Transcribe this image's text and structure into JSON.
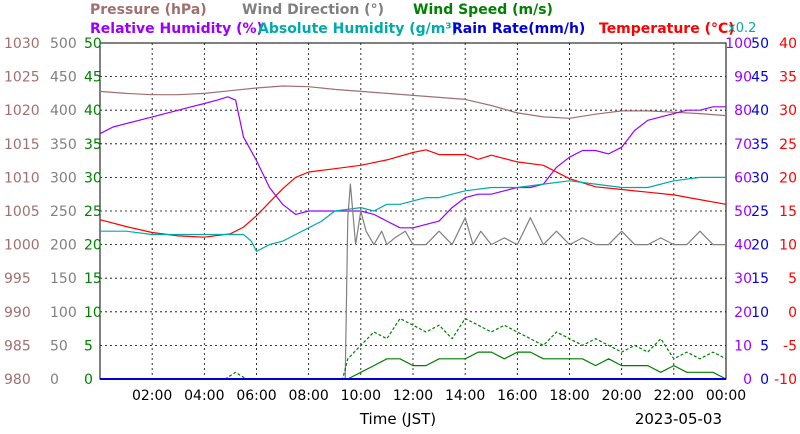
{
  "chart_data": {
    "type": "line",
    "legend": {
      "row1": [
        {
          "text": "Pressure (hPa)",
          "color": "#a07070"
        },
        {
          "text": "Wind Direction (°)",
          "color": "#808080"
        },
        {
          "text": "Wind Speed (m/s)",
          "color": "#008000"
        }
      ],
      "row2": [
        {
          "text": "Relative Humidity (%)",
          "color": "#9900ff"
        },
        {
          "text": "Absolute Humidity (g/m³)",
          "color": "#00aaaa"
        },
        {
          "text": "Rain Rate(mm/h)",
          "color": "#0000dd"
        },
        {
          "text": "Temperature (°C)",
          "color": "#ff0000"
        }
      ]
    },
    "multiplier_label": "x0.2",
    "xlabel": "Time (JST)",
    "date_label": "2023-05-03",
    "xrange": [
      0,
      24
    ],
    "x_tick_labels": [
      "02:00",
      "04:00",
      "06:00",
      "08:00",
      "10:00",
      "12:00",
      "14:00",
      "16:00",
      "18:00",
      "20:00",
      "22:00",
      "00:00"
    ],
    "axes": {
      "pressure": {
        "color": "#a07070",
        "range": [
          980,
          1030
        ],
        "ticks": [
          "1030",
          "1025",
          "1020",
          "1015",
          "1010",
          "1005",
          "1000",
          "995",
          "990",
          "985",
          "980"
        ]
      },
      "wind_direction": {
        "color": "#808080",
        "range": [
          0,
          500
        ],
        "ticks": [
          "500",
          "450",
          "400",
          "350",
          "300",
          "250",
          "200",
          "150",
          "100",
          "50",
          "0"
        ]
      },
      "wind_speed": {
        "color": "#008000",
        "range": [
          0,
          50
        ],
        "ticks": [
          "50",
          "45",
          "40",
          "35",
          "30",
          "25",
          "20",
          "15",
          "10",
          "5",
          "0"
        ]
      },
      "humidity": {
        "color": "#9900ff",
        "range": [
          0,
          100
        ],
        "ticks": [
          "100",
          "90",
          "80",
          "70",
          "60",
          "50",
          "40",
          "30",
          "20",
          "10",
          "0"
        ]
      },
      "rain_rate": {
        "color": "#0000dd",
        "range": [
          0,
          50
        ],
        "ticks": [
          "50",
          "45",
          "40",
          "35",
          "30",
          "25",
          "20",
          "15",
          "10",
          "5",
          "0"
        ]
      },
      "temperature": {
        "color": "#ff0000",
        "range": [
          -10,
          40
        ],
        "ticks": [
          "40",
          "35",
          "30",
          "25",
          "20",
          "15",
          "10",
          "5",
          "0",
          "-5",
          "-10"
        ]
      }
    },
    "series": [
      {
        "name": "Pressure (hPa)",
        "axis": "pressure",
        "color": "#a07070",
        "x": [
          0,
          1,
          2,
          3,
          4,
          5,
          6,
          7,
          8,
          9,
          10,
          11,
          12,
          13,
          14,
          15,
          16,
          17,
          18,
          19,
          20,
          21,
          22,
          23,
          24
        ],
        "y": [
          1022.8,
          1022.5,
          1022.3,
          1022.3,
          1022.5,
          1022.9,
          1023.3,
          1023.6,
          1023.5,
          1023.1,
          1022.8,
          1022.5,
          1022.2,
          1021.9,
          1021.6,
          1020.7,
          1019.6,
          1019.0,
          1018.8,
          1019.4,
          1019.9,
          1019.9,
          1019.7,
          1019.5,
          1019.2
        ]
      },
      {
        "name": "Temperature (°C)",
        "axis": "temperature",
        "color": "#ff0000",
        "x": [
          0,
          1,
          2,
          3,
          4,
          5,
          5.5,
          6,
          6.5,
          7,
          7.5,
          8,
          9,
          10,
          11,
          12,
          12.5,
          13,
          14,
          14.5,
          15,
          16,
          17,
          18,
          19,
          20,
          21,
          22,
          23,
          24
        ],
        "y": [
          13.7,
          12.7,
          11.8,
          11.3,
          11.1,
          11.6,
          12.6,
          14.3,
          16.3,
          18.3,
          20.0,
          20.8,
          21.3,
          21.8,
          22.6,
          23.7,
          24.1,
          23.4,
          23.4,
          22.7,
          23.3,
          22.3,
          21.8,
          19.8,
          18.6,
          18.2,
          17.8,
          17.4,
          16.7,
          16.0
        ]
      },
      {
        "name": "Relative Humidity (%)",
        "axis": "humidity",
        "color": "#9900ff",
        "x": [
          0,
          0.5,
          1,
          1.5,
          2,
          2.5,
          3,
          3.5,
          4,
          4.5,
          4.9,
          5.2,
          5.5,
          6,
          6.5,
          7,
          7.5,
          8,
          8.5,
          9,
          9.5,
          10,
          10.5,
          11,
          11.5,
          12,
          12.5,
          13,
          13.5,
          14,
          14.5,
          15,
          15.5,
          16,
          16.5,
          17,
          17.5,
          18,
          18.5,
          19,
          19.5,
          20,
          20.5,
          21,
          21.5,
          22,
          22.5,
          23,
          23.5,
          24
        ],
        "y": [
          73,
          75,
          76,
          77,
          78,
          79,
          80,
          81,
          82,
          83,
          84,
          83,
          72,
          65,
          57,
          52,
          49,
          50,
          50,
          50,
          50,
          50,
          49,
          47,
          45,
          45,
          46,
          47,
          51,
          54,
          55,
          55,
          56,
          57,
          57,
          58,
          63,
          66,
          68,
          68,
          67,
          69,
          74,
          77,
          78,
          79,
          80,
          80,
          81,
          81
        ]
      },
      {
        "name": "Absolute Humidity (g/m³)",
        "axis": "humidity",
        "color": "#00aaaa",
        "x": [
          0,
          1,
          2,
          3,
          4,
          5,
          5.5,
          5.8,
          6,
          6.5,
          7,
          7.5,
          8,
          8.5,
          9,
          10,
          10.5,
          11,
          11.5,
          12,
          12.5,
          13,
          14,
          15,
          16,
          17,
          18,
          19,
          20,
          21,
          22,
          23,
          24
        ],
        "y": [
          44,
          44,
          43,
          43,
          43,
          43,
          43,
          41,
          38,
          40,
          41,
          43,
          45,
          47,
          50,
          51,
          50,
          52,
          52,
          53,
          54,
          54,
          56,
          57,
          57,
          58,
          59,
          58,
          57,
          57,
          59,
          60,
          60
        ]
      },
      {
        "name": "Wind Direction (°)",
        "axis": "wind_direction",
        "color": "#808080",
        "x": [
          0,
          9.4,
          9.5,
          9.6,
          9.8,
          10,
          10.2,
          10.5,
          10.8,
          11,
          11.3,
          11.7,
          12,
          12.5,
          13,
          13.5,
          14,
          14.3,
          14.6,
          15,
          15.5,
          16,
          16.5,
          17,
          17.5,
          18,
          18.5,
          19,
          19.5,
          20,
          20.5,
          21,
          21.5,
          22,
          22.5,
          23,
          23.5,
          24
        ],
        "y": [
          0,
          0,
          240,
          290,
          200,
          250,
          220,
          200,
          220,
          200,
          210,
          220,
          200,
          200,
          220,
          200,
          240,
          200,
          220,
          200,
          210,
          200,
          240,
          200,
          220,
          200,
          210,
          200,
          200,
          220,
          200,
          200,
          210,
          200,
          200,
          220,
          200,
          200
        ]
      },
      {
        "name": "Wind Speed (m/s) max",
        "axis": "wind_speed",
        "color": "#008000",
        "dashed": true,
        "x": [
          0,
          4.8,
          5.2,
          5.6,
          6,
          9.3,
          9.5,
          10,
          10.5,
          11,
          11.5,
          12,
          12.5,
          13,
          13.5,
          14,
          14.5,
          15,
          15.5,
          16,
          16.5,
          17,
          17.5,
          18,
          18.5,
          19,
          19.5,
          20,
          20.5,
          21,
          21.5,
          22,
          22.5,
          23,
          23.5,
          24
        ],
        "y": [
          0,
          0,
          1,
          0,
          0,
          0,
          3,
          5,
          7,
          6,
          9,
          8,
          7,
          8,
          6,
          9,
          8,
          7,
          8,
          7,
          6,
          5,
          7,
          6,
          5,
          6,
          5,
          4,
          5,
          4,
          6,
          3,
          4,
          3,
          4,
          3
        ]
      },
      {
        "name": "Wind Speed (m/s) avg",
        "axis": "wind_speed",
        "color": "#008000",
        "x": [
          0,
          9.5,
          10,
          10.5,
          11,
          11.5,
          12,
          12.5,
          13,
          13.5,
          14,
          14.5,
          15,
          15.5,
          16,
          16.5,
          17,
          17.5,
          18,
          18.5,
          19,
          19.5,
          20,
          20.5,
          21,
          21.5,
          22,
          22.5,
          23,
          23.5,
          24
        ],
        "y": [
          0,
          0,
          1,
          2,
          3,
          3,
          2,
          2,
          3,
          3,
          3,
          4,
          4,
          3,
          4,
          4,
          3,
          3,
          3,
          3,
          2,
          3,
          2,
          2,
          2,
          1,
          2,
          1,
          1,
          1,
          0
        ]
      },
      {
        "name": "Rain Rate(mm/h)",
        "axis": "rain_rate",
        "color": "#0000dd",
        "x": [
          0,
          24
        ],
        "y": [
          0,
          0
        ]
      }
    ]
  }
}
